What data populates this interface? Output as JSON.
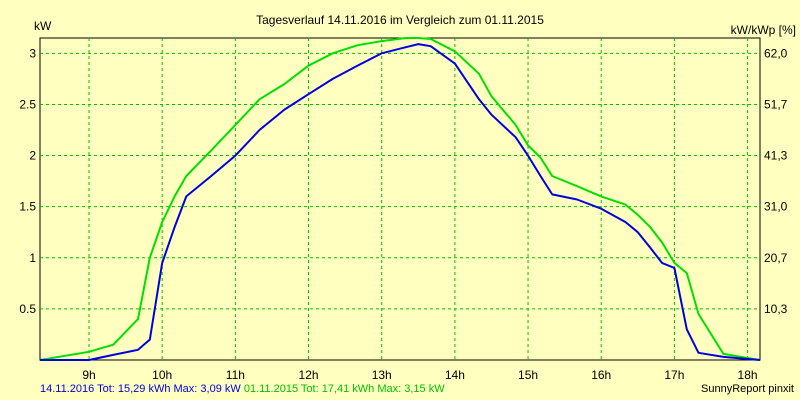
{
  "chart_data": {
    "type": "line",
    "title": "Tagesverlauf 14.11.2016 im Vergleich zum 01.11.2015",
    "ylabel_left": "kW",
    "ylabel_right": "kW/kWp [%]",
    "x_ticks": [
      "9h",
      "10h",
      "11h",
      "12h",
      "13h",
      "14h",
      "15h",
      "16h",
      "17h",
      "18h"
    ],
    "x_tick_values": [
      9,
      10,
      11,
      12,
      13,
      14,
      15,
      16,
      17,
      18
    ],
    "y_ticks": [
      "0.5",
      "1",
      "1.5",
      "2",
      "2.5",
      "3"
    ],
    "y_tick_values": [
      0.5,
      1,
      1.5,
      2,
      2.5,
      3
    ],
    "y_right_ticks": [
      "10,3",
      "20,7",
      "31,0",
      "41,3",
      "51,7",
      "62,0"
    ],
    "xlim": [
      8.33,
      18.17
    ],
    "ylim": [
      0,
      3.15
    ],
    "grid": true,
    "series": [
      {
        "name": "14.11.2016",
        "color": "#0000e0",
        "x": [
          8.33,
          9.0,
          9.33,
          9.67,
          9.83,
          10.0,
          10.17,
          10.33,
          10.67,
          11.0,
          11.33,
          11.67,
          12.0,
          12.33,
          12.67,
          13.0,
          13.33,
          13.5,
          13.67,
          14.0,
          14.33,
          14.5,
          14.83,
          15.0,
          15.17,
          15.33,
          15.67,
          16.0,
          16.33,
          16.5,
          16.67,
          16.83,
          17.0,
          17.17,
          17.33,
          17.67,
          18.0,
          18.17
        ],
        "y": [
          0,
          0,
          0.05,
          0.1,
          0.2,
          0.95,
          1.3,
          1.6,
          1.8,
          2.0,
          2.25,
          2.45,
          2.6,
          2.75,
          2.88,
          3.0,
          3.06,
          3.09,
          3.07,
          2.9,
          2.55,
          2.4,
          2.18,
          2.0,
          1.8,
          1.62,
          1.57,
          1.48,
          1.35,
          1.25,
          1.1,
          0.95,
          0.9,
          0.3,
          0.07,
          0.03,
          0.01,
          0
        ]
      },
      {
        "name": "01.11.2015",
        "color": "#00e000",
        "x": [
          8.33,
          9.0,
          9.33,
          9.67,
          9.83,
          10.0,
          10.17,
          10.33,
          10.67,
          11.0,
          11.33,
          11.67,
          12.0,
          12.33,
          12.67,
          13.0,
          13.33,
          13.5,
          13.67,
          14.0,
          14.33,
          14.5,
          14.83,
          15.0,
          15.17,
          15.33,
          15.67,
          16.0,
          16.33,
          16.5,
          16.67,
          16.83,
          17.0,
          17.17,
          17.33,
          17.67,
          18.0,
          18.17
        ],
        "y": [
          0,
          0.08,
          0.15,
          0.4,
          1.0,
          1.35,
          1.6,
          1.8,
          2.05,
          2.3,
          2.55,
          2.7,
          2.88,
          3.0,
          3.08,
          3.12,
          3.15,
          3.15,
          3.14,
          3.02,
          2.8,
          2.58,
          2.3,
          2.1,
          1.98,
          1.8,
          1.7,
          1.6,
          1.52,
          1.42,
          1.3,
          1.15,
          0.95,
          0.85,
          0.45,
          0.06,
          0.02,
          0
        ]
      }
    ]
  },
  "footer": {
    "series1_text": "14.11.2016 Tot: 15,29 kWh Max: 3,09 kW",
    "series2_text": "01.11.2015 Tot: 17,41 kWh Max: 3,15 kW",
    "credit": "SunnyReport pinxit"
  }
}
